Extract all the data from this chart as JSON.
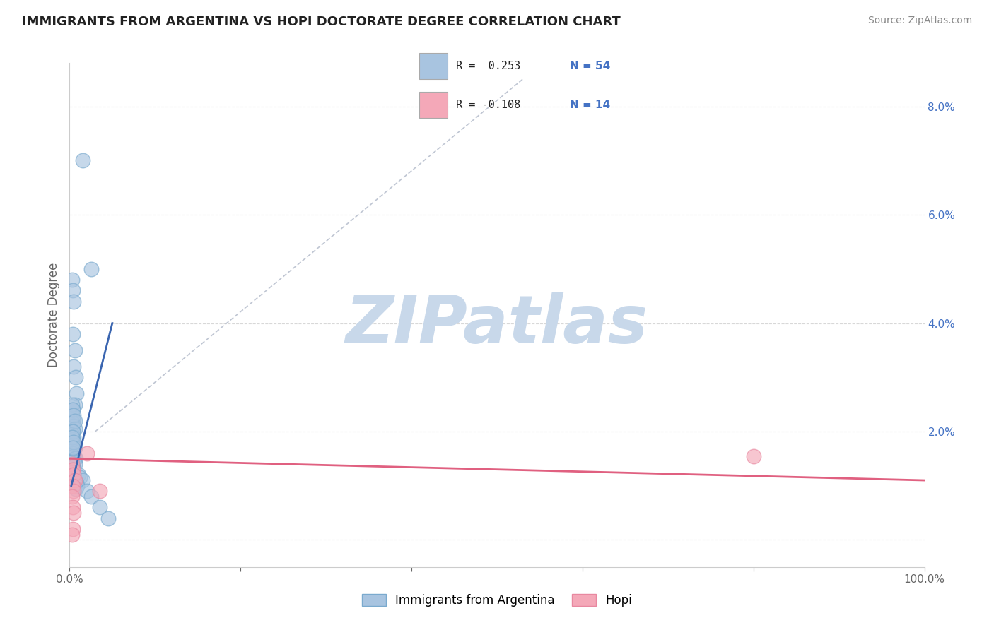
{
  "title": "IMMIGRANTS FROM ARGENTINA VS HOPI DOCTORATE DEGREE CORRELATION CHART",
  "source_text": "Source: ZipAtlas.com",
  "ylabel": "Doctorate Degree",
  "xlim": [
    0,
    100
  ],
  "ylim": [
    -0.5,
    8.8
  ],
  "x_tick_vals": [
    0,
    20,
    40,
    60,
    80,
    100
  ],
  "x_tick_labels": [
    "0.0%",
    "",
    "",
    "",
    "",
    "100.0%"
  ],
  "y_tick_vals": [
    0,
    2,
    4,
    6,
    8
  ],
  "y_tick_labels": [
    "",
    "2.0%",
    "4.0%",
    "6.0%",
    "8.0%"
  ],
  "legend_r1": "R =  0.253",
  "legend_n1": "N = 54",
  "legend_r2": "R = -0.108",
  "legend_n2": "N = 14",
  "legend_label1": "Immigrants from Argentina",
  "legend_label2": "Hopi",
  "blue_color": "#a8c4e0",
  "blue_edge_color": "#7aaace",
  "pink_color": "#f4a8b8",
  "pink_edge_color": "#e888a0",
  "blue_line_color": "#3a65b0",
  "pink_line_color": "#e06080",
  "dash_line_color": "#b0b8c8",
  "watermark_text": "ZIPatlas",
  "watermark_color": "#c8d8ea",
  "background_color": "#ffffff",
  "grid_color": "#d8d8d8",
  "blue_scatter_x": [
    1.5,
    2.5,
    0.3,
    0.4,
    0.5,
    0.4,
    0.6,
    0.5,
    0.7,
    0.8,
    0.6,
    0.4,
    0.3,
    0.5,
    0.4,
    0.5,
    0.6,
    0.4,
    0.3,
    0.5,
    0.4,
    0.3,
    0.5,
    0.6,
    0.3,
    0.4,
    0.5,
    0.6,
    0.7,
    0.5,
    0.4,
    0.6,
    0.4,
    0.5,
    0.3,
    0.4,
    1.0,
    1.2,
    1.5,
    0.8,
    0.9,
    0.7,
    2.0,
    2.5,
    3.5,
    4.5,
    0.3,
    0.4,
    0.5,
    0.6,
    0.4,
    0.3,
    0.5,
    0.4
  ],
  "blue_scatter_y": [
    7.0,
    5.0,
    4.8,
    4.6,
    4.4,
    3.8,
    3.5,
    3.2,
    3.0,
    2.7,
    2.5,
    2.4,
    2.3,
    2.2,
    2.15,
    2.1,
    2.05,
    2.0,
    1.95,
    1.9,
    1.85,
    1.8,
    1.75,
    1.7,
    1.65,
    1.6,
    1.55,
    1.5,
    1.5,
    1.45,
    1.4,
    1.4,
    1.35,
    1.3,
    1.25,
    1.2,
    1.2,
    1.15,
    1.1,
    1.05,
    1.0,
    0.95,
    0.9,
    0.8,
    0.6,
    0.4,
    2.5,
    2.4,
    2.3,
    2.2,
    2.0,
    1.9,
    1.8,
    1.7
  ],
  "pink_scatter_x": [
    0.3,
    0.4,
    0.5,
    0.6,
    0.4,
    0.5,
    0.3,
    0.4,
    0.5,
    0.4,
    0.3,
    2.0,
    3.5,
    80.0
  ],
  "pink_scatter_y": [
    1.4,
    1.3,
    1.2,
    1.1,
    1.0,
    0.9,
    0.8,
    0.6,
    0.5,
    0.2,
    0.1,
    1.6,
    0.9,
    1.55
  ],
  "blue_trend_x": [
    0.2,
    5.0
  ],
  "blue_trend_y": [
    1.0,
    4.0
  ],
  "pink_trend_x": [
    0,
    100
  ],
  "pink_trend_y": [
    1.5,
    1.1
  ],
  "dash_line_x": [
    3,
    53
  ],
  "dash_line_y": [
    2.0,
    8.5
  ]
}
